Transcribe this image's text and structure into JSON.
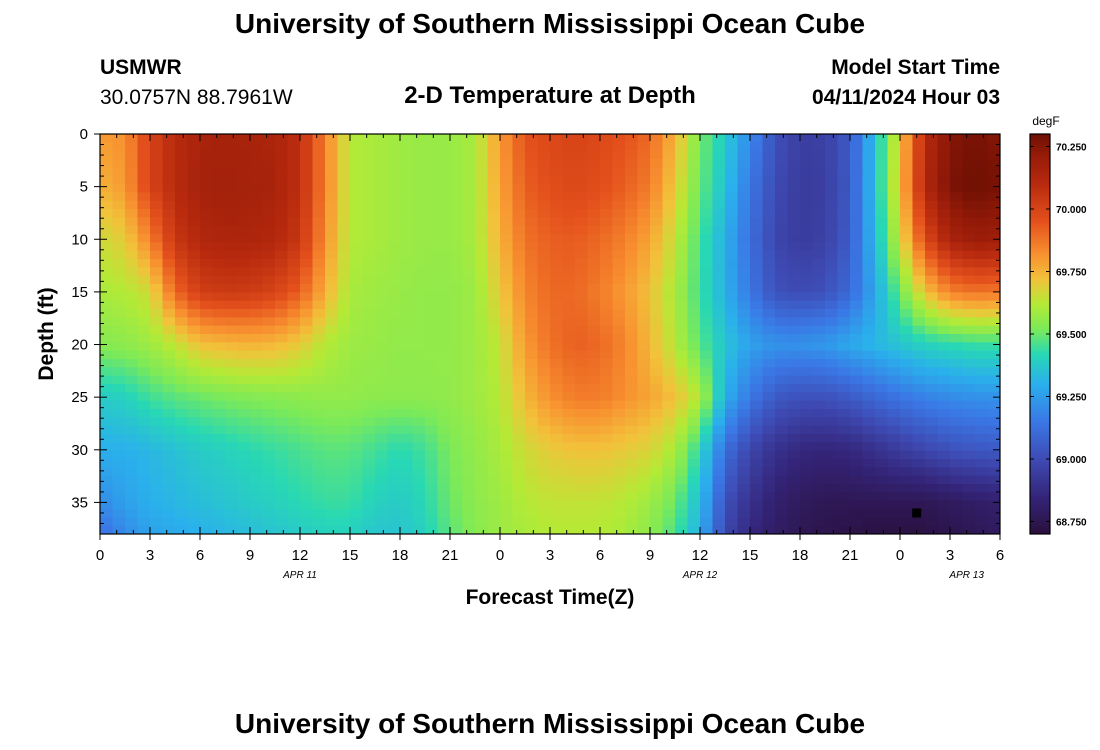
{
  "header": {
    "title": "University of Southern Mississippi Ocean Cube",
    "station": "USMWR",
    "coords": "30.0757N  88.7961W",
    "model_start_label": "Model Start Time",
    "model_start_value": "04/11/2024 Hour 03"
  },
  "footer": {
    "title": "University of Southern Mississippi Ocean Cube"
  },
  "chart_data": {
    "type": "heatmap",
    "title": "2-D Temperature at Depth",
    "xlabel": "Forecast Time(Z)",
    "ylabel": "Depth (ft)",
    "x_tick_labels": [
      "0",
      "3",
      "6",
      "9",
      "12",
      "15",
      "18",
      "21",
      "0",
      "3",
      "6",
      "9",
      "12",
      "15",
      "18",
      "21",
      "0",
      "3",
      "6"
    ],
    "x_hours_range": [
      0,
      54
    ],
    "date_labels": [
      {
        "text": "APR 11",
        "hour": 12
      },
      {
        "text": "APR 12",
        "hour": 36
      },
      {
        "text": "APR 13",
        "hour": 52
      }
    ],
    "y_ticks": [
      0,
      5,
      10,
      15,
      20,
      25,
      30,
      35
    ],
    "ylim": [
      0,
      38
    ],
    "y_inverted": true,
    "colorbar": {
      "unit": "degF",
      "vmin": 68.7,
      "vmax": 70.3,
      "tick_values": [
        70.25,
        70.0,
        69.75,
        69.5,
        69.25,
        69.0,
        68.75
      ],
      "tick_labels": [
        "70.250",
        "70.000",
        "69.750",
        "69.500",
        "69.250",
        "69.000",
        "68.750"
      ],
      "stops": [
        {
          "v": 68.7,
          "color": "#2a0f3c"
        },
        {
          "v": 68.85,
          "color": "#34257a"
        },
        {
          "v": 69.0,
          "color": "#3e4bb4"
        },
        {
          "v": 69.15,
          "color": "#3a78e6"
        },
        {
          "v": 69.3,
          "color": "#2ab0ec"
        },
        {
          "v": 69.42,
          "color": "#28d8b4"
        },
        {
          "v": 69.52,
          "color": "#7cea58"
        },
        {
          "v": 69.62,
          "color": "#b4ea36"
        },
        {
          "v": 69.72,
          "color": "#f2c23a"
        },
        {
          "v": 69.82,
          "color": "#f89030"
        },
        {
          "v": 69.95,
          "color": "#e4501c"
        },
        {
          "v": 70.1,
          "color": "#b82a0e"
        },
        {
          "v": 70.22,
          "color": "#941a08"
        },
        {
          "v": 70.3,
          "color": "#6e1004"
        }
      ]
    },
    "marker": {
      "hour": 49,
      "depth": 36
    },
    "grid_hours": [
      0,
      1.5,
      3,
      4.5,
      6,
      7.5,
      9,
      10.5,
      12,
      13.5,
      15,
      16.5,
      18,
      19.5,
      21,
      22.5,
      24,
      25.5,
      27,
      28.5,
      30,
      31.5,
      33,
      34.5,
      36,
      37.5,
      39,
      40.5,
      42,
      43.5,
      45,
      46.5,
      48,
      49.5,
      51,
      52.5,
      54
    ],
    "grid_depths": [
      0,
      5,
      10,
      15,
      20,
      25,
      30,
      35,
      38
    ],
    "values": [
      [
        69.8,
        69.82,
        70.0,
        70.1,
        70.15,
        70.16,
        70.15,
        70.14,
        70.08,
        69.85,
        69.62,
        69.6,
        69.58,
        69.57,
        69.57,
        69.6,
        69.8,
        69.95,
        69.98,
        70.0,
        69.98,
        69.95,
        69.9,
        69.75,
        69.52,
        69.38,
        69.2,
        69.02,
        68.95,
        68.96,
        69.05,
        69.35,
        69.7,
        70.1,
        70.25,
        70.28,
        70.25
      ],
      [
        69.75,
        69.8,
        70.0,
        70.1,
        70.16,
        70.17,
        70.16,
        70.15,
        70.08,
        69.85,
        69.62,
        69.6,
        69.58,
        69.57,
        69.57,
        69.6,
        69.78,
        69.92,
        69.96,
        69.98,
        69.96,
        69.92,
        69.86,
        69.7,
        69.5,
        69.35,
        69.15,
        69.0,
        68.94,
        68.95,
        69.05,
        69.35,
        69.72,
        70.12,
        70.27,
        70.3,
        70.28
      ],
      [
        69.66,
        69.7,
        69.85,
        70.05,
        70.12,
        70.14,
        70.14,
        70.12,
        70.05,
        69.82,
        69.62,
        69.6,
        69.58,
        69.57,
        69.57,
        69.6,
        69.75,
        69.88,
        69.92,
        69.93,
        69.9,
        69.85,
        69.78,
        69.64,
        69.46,
        69.3,
        69.12,
        68.98,
        68.94,
        68.96,
        69.06,
        69.33,
        69.65,
        69.98,
        70.15,
        70.2,
        70.18
      ],
      [
        69.6,
        69.62,
        69.66,
        69.9,
        70.02,
        70.04,
        70.03,
        70.0,
        69.92,
        69.76,
        69.6,
        69.58,
        69.57,
        69.56,
        69.56,
        69.58,
        69.7,
        69.84,
        69.9,
        69.9,
        69.86,
        69.8,
        69.72,
        69.6,
        69.45,
        69.3,
        69.15,
        69.02,
        69.0,
        69.02,
        69.1,
        69.28,
        69.5,
        69.72,
        69.85,
        69.88,
        69.87
      ],
      [
        69.54,
        69.55,
        69.58,
        69.64,
        69.72,
        69.74,
        69.75,
        69.74,
        69.7,
        69.62,
        69.58,
        69.57,
        69.56,
        69.56,
        69.56,
        69.58,
        69.64,
        69.8,
        69.88,
        69.92,
        69.9,
        69.84,
        69.74,
        69.62,
        69.48,
        69.36,
        69.26,
        69.22,
        69.22,
        69.24,
        69.28,
        69.32,
        69.36,
        69.4,
        69.42,
        69.44,
        69.44
      ],
      [
        69.38,
        69.4,
        69.45,
        69.48,
        69.5,
        69.52,
        69.53,
        69.54,
        69.55,
        69.56,
        69.56,
        69.55,
        69.55,
        69.55,
        69.56,
        69.58,
        69.62,
        69.74,
        69.82,
        69.86,
        69.86,
        69.82,
        69.78,
        69.72,
        69.62,
        69.3,
        69.15,
        69.05,
        69.02,
        69.02,
        69.05,
        69.1,
        69.14,
        69.18,
        69.2,
        69.22,
        69.22
      ],
      [
        69.3,
        69.3,
        69.32,
        69.35,
        69.38,
        69.4,
        69.42,
        69.44,
        69.46,
        69.48,
        69.48,
        69.45,
        69.42,
        69.45,
        69.52,
        69.56,
        69.6,
        69.66,
        69.7,
        69.72,
        69.72,
        69.7,
        69.68,
        69.6,
        69.42,
        69.12,
        68.98,
        68.9,
        68.86,
        68.85,
        68.86,
        68.9,
        68.94,
        68.98,
        69.02,
        69.04,
        69.05
      ],
      [
        69.2,
        69.26,
        69.3,
        69.32,
        69.34,
        69.36,
        69.38,
        69.4,
        69.42,
        69.44,
        69.44,
        69.4,
        69.38,
        69.42,
        69.5,
        69.55,
        69.58,
        69.62,
        69.64,
        69.64,
        69.64,
        69.62,
        69.58,
        69.5,
        69.34,
        69.02,
        68.9,
        68.82,
        68.78,
        68.76,
        68.76,
        68.76,
        68.76,
        68.76,
        68.78,
        68.8,
        68.82
      ],
      [
        69.12,
        69.2,
        69.26,
        69.28,
        69.3,
        69.32,
        69.34,
        69.36,
        69.38,
        69.4,
        69.4,
        69.36,
        69.36,
        69.4,
        69.48,
        69.54,
        69.58,
        69.6,
        69.62,
        69.62,
        69.62,
        69.6,
        69.55,
        69.46,
        69.3,
        68.98,
        68.86,
        68.8,
        68.76,
        68.74,
        68.73,
        68.72,
        68.72,
        68.72,
        68.74,
        68.76,
        68.78
      ]
    ]
  }
}
